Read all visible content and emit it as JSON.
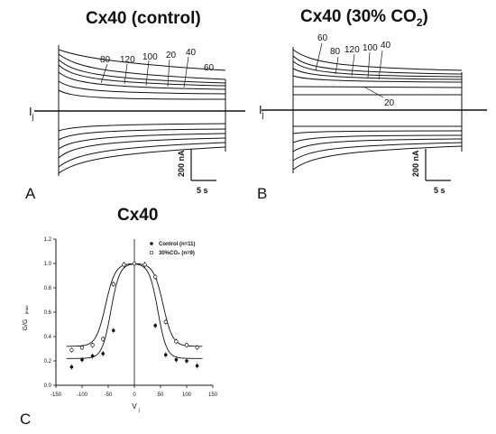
{
  "panels": {
    "A": {
      "letter": "A",
      "title": "Cx40 (control)",
      "trace_label": "I",
      "trace_label_sub": "j",
      "trace_labels": [
        "80",
        "120",
        "100",
        "20",
        "40",
        "60"
      ],
      "scalebar": {
        "current": "200 nA",
        "time": "5 s"
      }
    },
    "B": {
      "letter": "B",
      "title_main": "Cx40 (30% CO",
      "title_sub": "2",
      "title_end": ")",
      "trace_label": "I",
      "trace_label_sub": "j",
      "trace_labels": [
        "60",
        "80",
        "120",
        "100",
        "40",
        "20"
      ],
      "scalebar": {
        "current": "200 nA",
        "time": "5 s"
      }
    },
    "C": {
      "letter": "C",
      "title": "Cx40"
    }
  },
  "chart_data": {
    "type": "scatter",
    "title": "Cx40",
    "xlabel": "V",
    "xlabel_sub": "j",
    "ylabel": "G/G",
    "ylabel_sub": "jmax",
    "xlim": [
      -150,
      150
    ],
    "ylim": [
      0.0,
      1.2
    ],
    "xticks": [
      "-150",
      "-100",
      "-50",
      "0",
      "50",
      "100",
      "150"
    ],
    "yticks": [
      "0.0",
      "0.2",
      "0.4",
      "0.6",
      "0.8",
      "1.0",
      "1.2"
    ],
    "legend_position": "top-right",
    "series": [
      {
        "name": "Control (n=11)",
        "marker": "filled-circle",
        "x": [
          -120,
          -100,
          -80,
          -60,
          -40,
          -20,
          0,
          20,
          40,
          60,
          80,
          100,
          120
        ],
        "y": [
          0.15,
          0.21,
          0.24,
          0.26,
          0.45,
          0.99,
          1.0,
          0.99,
          0.49,
          0.25,
          0.21,
          0.2,
          0.16
        ]
      },
      {
        "name": "30%CO₂ (n=9)",
        "marker": "open-circle",
        "x": [
          -120,
          -100,
          -80,
          -60,
          -40,
          -20,
          0,
          20,
          40,
          60,
          80,
          100,
          120
        ],
        "y": [
          0.29,
          0.31,
          0.33,
          0.38,
          0.83,
          0.99,
          1.0,
          0.99,
          0.89,
          0.52,
          0.36,
          0.33,
          0.31
        ]
      }
    ]
  }
}
